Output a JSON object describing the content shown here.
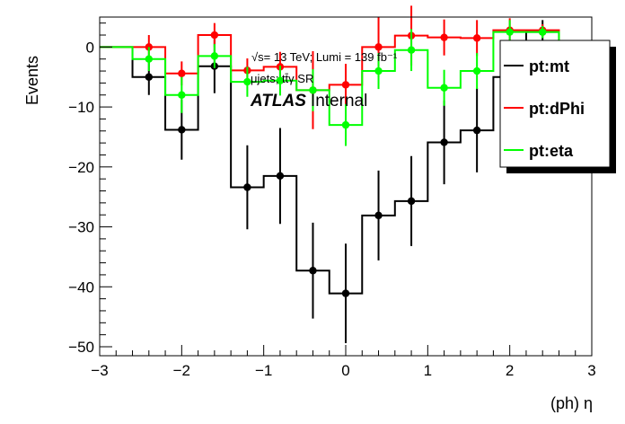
{
  "chart_data": {
    "type": "line",
    "xlabel": "(ph) η",
    "ylabel": "Events",
    "xlim": [
      -3,
      3
    ],
    "ylim": [
      -51.5,
      5
    ],
    "x_ticks": [
      -3,
      -2,
      -1,
      0,
      1,
      2,
      3
    ],
    "x_tick_labels": [
      "−3",
      "−2",
      "−1",
      "0",
      "1",
      "2",
      "3"
    ],
    "y_ticks": [
      -50,
      -40,
      -30,
      -20,
      -10,
      0
    ],
    "y_tick_labels": [
      "−50",
      "−40",
      "−30",
      "−20",
      "−10",
      "0"
    ],
    "bin_edges": [
      -3,
      -2.6,
      -2.2,
      -1.8,
      -1.4,
      -1.0,
      -0.6,
      -0.2,
      0.2,
      0.6,
      1.0,
      1.4,
      1.8,
      2.2,
      2.6,
      3
    ],
    "series": [
      {
        "name": "pt:mt",
        "color": "#000000",
        "values": [
          0,
          -5,
          -13.8,
          -3.2,
          -23.4,
          -21.5,
          -37.3,
          -41.1,
          -28.1,
          -25.7,
          -15.9,
          -13.9,
          -5,
          2.5,
          0
        ],
        "errors": [
          0,
          3,
          5,
          4.5,
          7,
          8,
          8,
          8.3,
          7.5,
          7.5,
          7,
          7,
          4,
          2,
          0
        ]
      },
      {
        "name": "pt:dPhi",
        "color": "#ff0000",
        "values": [
          0,
          0,
          -4.4,
          2,
          -3.9,
          -3.3,
          -7.2,
          -6.3,
          0,
          1.9,
          1.6,
          1.5,
          2.8,
          2.8,
          0
        ],
        "errors": [
          0,
          2,
          2,
          2,
          2,
          2.5,
          6.5,
          3.5,
          5,
          5,
          3,
          3,
          2,
          1,
          0
        ]
      },
      {
        "name": "pt:eta",
        "color": "#00ff00",
        "values": [
          0,
          -2,
          -8,
          -1.5,
          -5.8,
          -5.6,
          -7.2,
          -13,
          -4,
          -0.5,
          -6.8,
          -4,
          2.5,
          2.5,
          0
        ],
        "errors": [
          0,
          2,
          3,
          2,
          2.5,
          2.5,
          3.5,
          3.5,
          3,
          3.5,
          3,
          3,
          2,
          1,
          0
        ]
      }
    ],
    "legend_position": "top-right",
    "annotations": {
      "energy_line": "√s= 13 TeV; Lumi = 139 fb⁻¹",
      "region_line": "μjets; tt̄γ SR",
      "atlas_bold": "ATLAS",
      "atlas_status": "Internal"
    }
  }
}
